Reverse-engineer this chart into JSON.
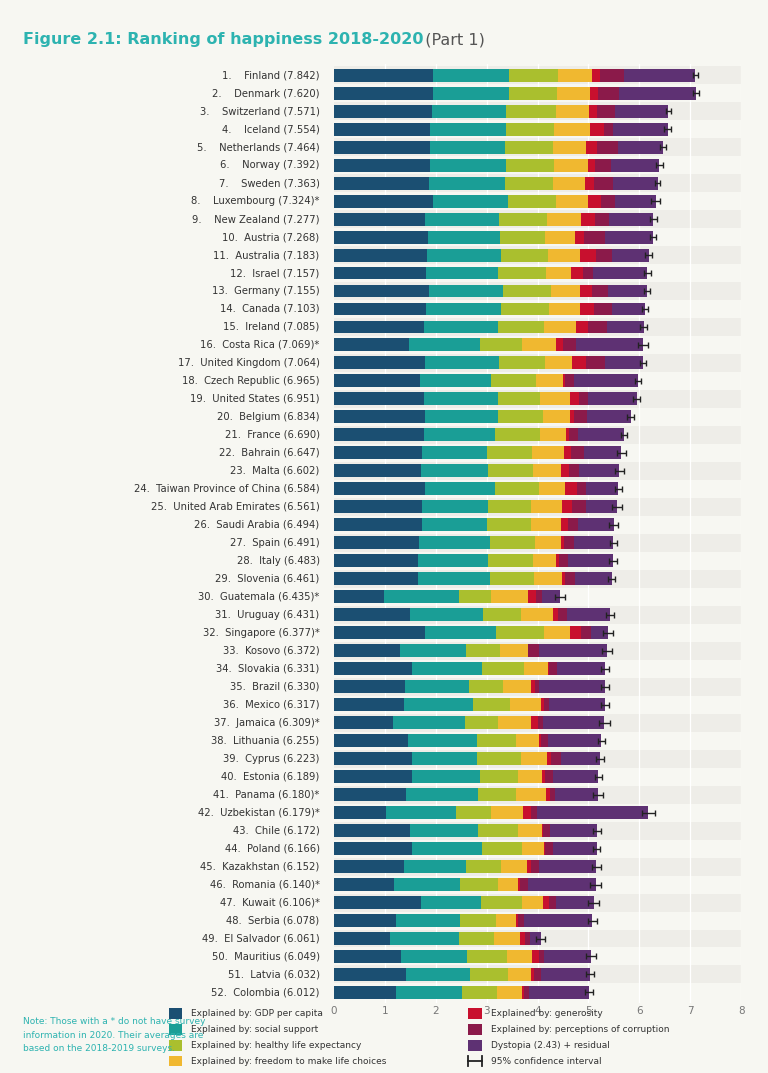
{
  "title_bold": "Figure 2.1: Ranking of happiness 2018-2020",
  "title_light": "  (Part 1)",
  "title_color": "#2db3b0",
  "title_light_color": "#555555",
  "background_color": "#f7f7f2",
  "note_text": "Note: Those with a * do not have survey\ninformation in 2020. Their averages are\nbased on the 2018-2019 surveys.",
  "countries": [
    "1.    Finland (7.842)",
    "2.    Denmark (7.620)",
    "3.    Switzerland (7.571)",
    "4.    Iceland (7.554)",
    "5.    Netherlands (7.464)",
    "6.    Norway (7.392)",
    "7.    Sweden (7.363)",
    "8.    Luxembourg (7.324)*",
    "9.    New Zealand (7.277)",
    "10.  Austria (7.268)",
    "11.  Australia (7.183)",
    "12.  Israel (7.157)",
    "13.  Germany (7.155)",
    "14.  Canada (7.103)",
    "15.  Ireland (7.085)",
    "16.  Costa Rica (7.069)*",
    "17.  United Kingdom (7.064)",
    "18.  Czech Republic (6.965)",
    "19.  United States (6.951)",
    "20.  Belgium (6.834)",
    "21.  France (6.690)",
    "22.  Bahrain (6.647)",
    "23.  Malta (6.602)",
    "24.  Taiwan Province of China (6.584)",
    "25.  United Arab Emirates (6.561)",
    "26.  Saudi Arabia (6.494)",
    "27.  Spain (6.491)",
    "28.  Italy (6.483)",
    "29.  Slovenia (6.461)",
    "30.  Guatemala (6.435)*",
    "31.  Uruguay (6.431)",
    "32.  Singapore (6.377)*",
    "33.  Kosovo (6.372)",
    "34.  Slovakia (6.331)",
    "35.  Brazil (6.330)",
    "36.  Mexico (6.317)",
    "37.  Jamaica (6.309)*",
    "38.  Lithuania (6.255)",
    "39.  Cyprus (6.223)",
    "40.  Estonia (6.189)",
    "41.  Panama (6.180)*",
    "42.  Uzbekistan (6.179)*",
    "43.  Chile (6.172)",
    "44.  Poland (6.166)",
    "45.  Kazakhstan (6.152)",
    "46.  Romania (6.140)*",
    "47.  Kuwait (6.106)*",
    "48.  Serbia (6.078)",
    "49.  El Salvador (6.061)",
    "50.  Mauritius (6.049)",
    "51.  Latvia (6.032)",
    "52.  Colombia (6.012)"
  ],
  "gdp": [
    1.945,
    1.943,
    1.921,
    1.883,
    1.876,
    1.891,
    1.867,
    1.954,
    1.796,
    1.844,
    1.826,
    1.803,
    1.875,
    1.813,
    1.777,
    1.463,
    1.783,
    1.698,
    1.774,
    1.788,
    1.769,
    1.723,
    1.7,
    1.784,
    1.727,
    1.721,
    1.672,
    1.654,
    1.644,
    0.986,
    1.49,
    1.788,
    1.29,
    1.539,
    1.387,
    1.369,
    1.153,
    1.455,
    1.534,
    1.522,
    1.406,
    1.019,
    1.498,
    1.541,
    1.369,
    1.183,
    1.702,
    1.212,
    1.107,
    1.32,
    1.411,
    1.209
  ],
  "social": [
    1.501,
    1.487,
    1.46,
    1.497,
    1.484,
    1.479,
    1.488,
    1.457,
    1.452,
    1.418,
    1.452,
    1.414,
    1.451,
    1.464,
    1.452,
    1.396,
    1.449,
    1.392,
    1.44,
    1.428,
    1.397,
    1.29,
    1.324,
    1.37,
    1.306,
    1.29,
    1.402,
    1.367,
    1.421,
    1.461,
    1.44,
    1.398,
    1.299,
    1.363,
    1.267,
    1.359,
    1.419,
    1.345,
    1.266,
    1.341,
    1.432,
    1.378,
    1.322,
    1.357,
    1.218,
    1.293,
    1.19,
    1.266,
    1.354,
    1.298,
    1.261,
    1.297
  ],
  "health": [
    0.961,
    0.954,
    0.976,
    0.933,
    0.936,
    0.956,
    0.94,
    0.945,
    0.94,
    0.878,
    0.927,
    0.953,
    0.93,
    0.941,
    0.902,
    0.841,
    0.908,
    0.876,
    0.839,
    0.893,
    0.89,
    0.885,
    0.881,
    0.864,
    0.833,
    0.854,
    0.882,
    0.892,
    0.864,
    0.629,
    0.741,
    0.939,
    0.681,
    0.822,
    0.669,
    0.729,
    0.657,
    0.784,
    0.875,
    0.753,
    0.737,
    0.69,
    0.793,
    0.786,
    0.694,
    0.743,
    0.794,
    0.713,
    0.68,
    0.777,
    0.742,
    0.702
  ],
  "freedom": [
    0.662,
    0.642,
    0.66,
    0.718,
    0.647,
    0.67,
    0.638,
    0.64,
    0.669,
    0.597,
    0.633,
    0.479,
    0.572,
    0.62,
    0.616,
    0.669,
    0.54,
    0.524,
    0.578,
    0.521,
    0.497,
    0.617,
    0.548,
    0.519,
    0.606,
    0.592,
    0.504,
    0.44,
    0.542,
    0.741,
    0.64,
    0.521,
    0.542,
    0.488,
    0.557,
    0.607,
    0.642,
    0.436,
    0.508,
    0.47,
    0.583,
    0.619,
    0.466,
    0.441,
    0.501,
    0.392,
    0.417,
    0.388,
    0.506,
    0.497,
    0.464,
    0.477
  ],
  "generosity": [
    0.16,
    0.157,
    0.158,
    0.27,
    0.215,
    0.134,
    0.17,
    0.256,
    0.273,
    0.166,
    0.317,
    0.248,
    0.241,
    0.266,
    0.25,
    0.127,
    0.271,
    0.053,
    0.174,
    0.083,
    0.063,
    0.149,
    0.162,
    0.237,
    0.2,
    0.142,
    0.063,
    0.065,
    0.068,
    0.143,
    0.095,
    0.2,
    0.0,
    0.018,
    0.066,
    0.07,
    0.145,
    0.037,
    0.083,
    0.06,
    0.085,
    0.17,
    0.031,
    0.011,
    0.088,
    0.041,
    0.117,
    0.035,
    0.1,
    0.136,
    0.046,
    0.054
  ],
  "corruption": [
    0.477,
    0.41,
    0.355,
    0.182,
    0.432,
    0.318,
    0.38,
    0.269,
    0.281,
    0.413,
    0.313,
    0.197,
    0.308,
    0.35,
    0.358,
    0.253,
    0.382,
    0.175,
    0.195,
    0.249,
    0.186,
    0.253,
    0.197,
    0.172,
    0.279,
    0.187,
    0.201,
    0.183,
    0.194,
    0.134,
    0.175,
    0.204,
    0.212,
    0.161,
    0.08,
    0.095,
    0.092,
    0.141,
    0.187,
    0.166,
    0.101,
    0.113,
    0.129,
    0.164,
    0.167,
    0.15,
    0.134,
    0.109,
    0.113,
    0.107,
    0.138,
    0.1
  ],
  "dystopia": [
    1.396,
    1.527,
    1.041,
    1.071,
    0.874,
    0.944,
    0.88,
    0.803,
    0.866,
    0.952,
    0.715,
    1.063,
    0.778,
    0.649,
    0.73,
    1.32,
    0.731,
    1.247,
    0.951,
    0.872,
    0.888,
    0.73,
    0.79,
    0.638,
    0.61,
    0.708,
    0.767,
    0.882,
    0.728,
    0.341,
    0.85,
    0.327,
    1.348,
    0.94,
    1.304,
    1.088,
    1.201,
    1.057,
    0.77,
    0.877,
    0.836,
    2.19,
    0.933,
    0.866,
    1.115,
    1.338,
    0.752,
    1.355,
    0.201,
    0.914,
    0.97,
    1.173
  ],
  "ci_low": [
    0.05,
    0.06,
    0.05,
    0.07,
    0.06,
    0.07,
    0.05,
    0.09,
    0.06,
    0.06,
    0.07,
    0.07,
    0.06,
    0.06,
    0.07,
    0.1,
    0.06,
    0.06,
    0.07,
    0.07,
    0.06,
    0.09,
    0.09,
    0.07,
    0.09,
    0.09,
    0.07,
    0.07,
    0.07,
    0.1,
    0.08,
    0.1,
    0.1,
    0.08,
    0.08,
    0.08,
    0.11,
    0.07,
    0.08,
    0.07,
    0.1,
    0.12,
    0.08,
    0.07,
    0.09,
    0.11,
    0.11,
    0.08,
    0.09,
    0.09,
    0.08,
    0.08
  ],
  "ci_high": [
    0.05,
    0.06,
    0.05,
    0.07,
    0.06,
    0.07,
    0.05,
    0.09,
    0.06,
    0.06,
    0.07,
    0.07,
    0.06,
    0.06,
    0.07,
    0.1,
    0.06,
    0.06,
    0.07,
    0.07,
    0.06,
    0.09,
    0.09,
    0.07,
    0.09,
    0.09,
    0.07,
    0.07,
    0.07,
    0.1,
    0.08,
    0.1,
    0.1,
    0.08,
    0.08,
    0.08,
    0.11,
    0.07,
    0.08,
    0.07,
    0.1,
    0.12,
    0.08,
    0.07,
    0.09,
    0.11,
    0.11,
    0.08,
    0.09,
    0.09,
    0.08,
    0.08
  ],
  "colors": {
    "gdp": "#1b4f72",
    "social": "#1a9e96",
    "health": "#aabf2e",
    "freedom": "#f0b830",
    "generosity": "#c8102e",
    "corruption": "#8b1a4a",
    "dystopia": "#5e3173"
  },
  "legend_col1": [
    {
      "label": "Explained by: GDP per capita",
      "color": "#1b4f72"
    },
    {
      "label": "Explained by: social support",
      "color": "#1a9e96"
    },
    {
      "label": "Explained by: healthy life expectancy",
      "color": "#aabf2e"
    },
    {
      "label": "Explained by: freedom to make life choices",
      "color": "#f0b830"
    }
  ],
  "legend_col2": [
    {
      "label": "Explained by: generosity",
      "color": "#c8102e"
    },
    {
      "label": "Explained by: perceptions of corruption",
      "color": "#8b1a4a"
    },
    {
      "label": "Dystopia (2.43) + residual",
      "color": "#5e3173"
    },
    {
      "label": "95% confidence interval",
      "color": "#333333"
    }
  ]
}
